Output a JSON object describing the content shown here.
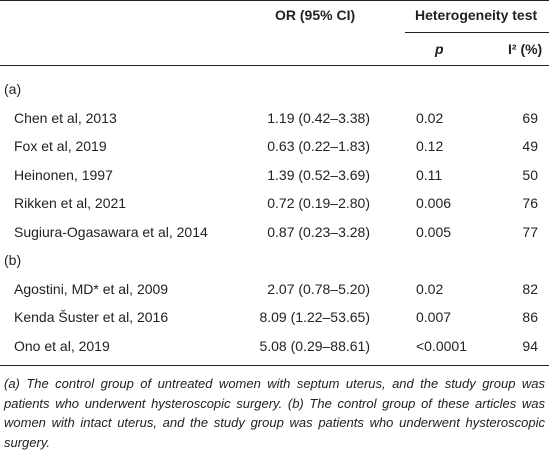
{
  "header": {
    "or": "OR (95% CI)",
    "heterogeneity": "Heterogeneity test",
    "p": "p",
    "i2": "I² (%)"
  },
  "groups": [
    {
      "label": "(a)",
      "rows": [
        {
          "study": "Chen et al, 2013",
          "or": "1.19 (0.42–3.38)",
          "p": "0.02",
          "i2": 69
        },
        {
          "study": "Fox et al, 2019",
          "or": "0.63 (0.22–1.83)",
          "p": "0.12",
          "i2": 49
        },
        {
          "study": "Heinonen, 1997",
          "or": "1.39 (0.52–3.69)",
          "p": "0.11",
          "i2": 50
        },
        {
          "study": "Rikken et al, 2021",
          "or": "0.72 (0.19–2.80)",
          "p": "0.006",
          "i2": 76
        },
        {
          "study": "Sugiura-Ogasawara et al, 2014",
          "or": "0.87 (0.23–3.28)",
          "p": "0.005",
          "i2": 77
        }
      ]
    },
    {
      "label": "(b)",
      "rows": [
        {
          "study": "Agostini, MD* et al, 2009",
          "or": "2.07 (0.78–5.20)",
          "p": "0.02",
          "i2": 82
        },
        {
          "study": "Kenda Šuster et al, 2016",
          "or": "8.09 (1.22–53.65)",
          "p": "0.007",
          "i2": 86
        },
        {
          "study": "Ono et al, 2019",
          "or": "5.08 (0.29–88.61)",
          "p": "<0.0001",
          "i2": 94
        }
      ]
    }
  ],
  "footnote": "(a) The control group of untreated women with septum uterus, and the study group was patients who underwent hysteroscopic surgery. (b) The control group of these articles was women with intact uterus, and the study group was patients who underwent hysteroscopic surgery."
}
